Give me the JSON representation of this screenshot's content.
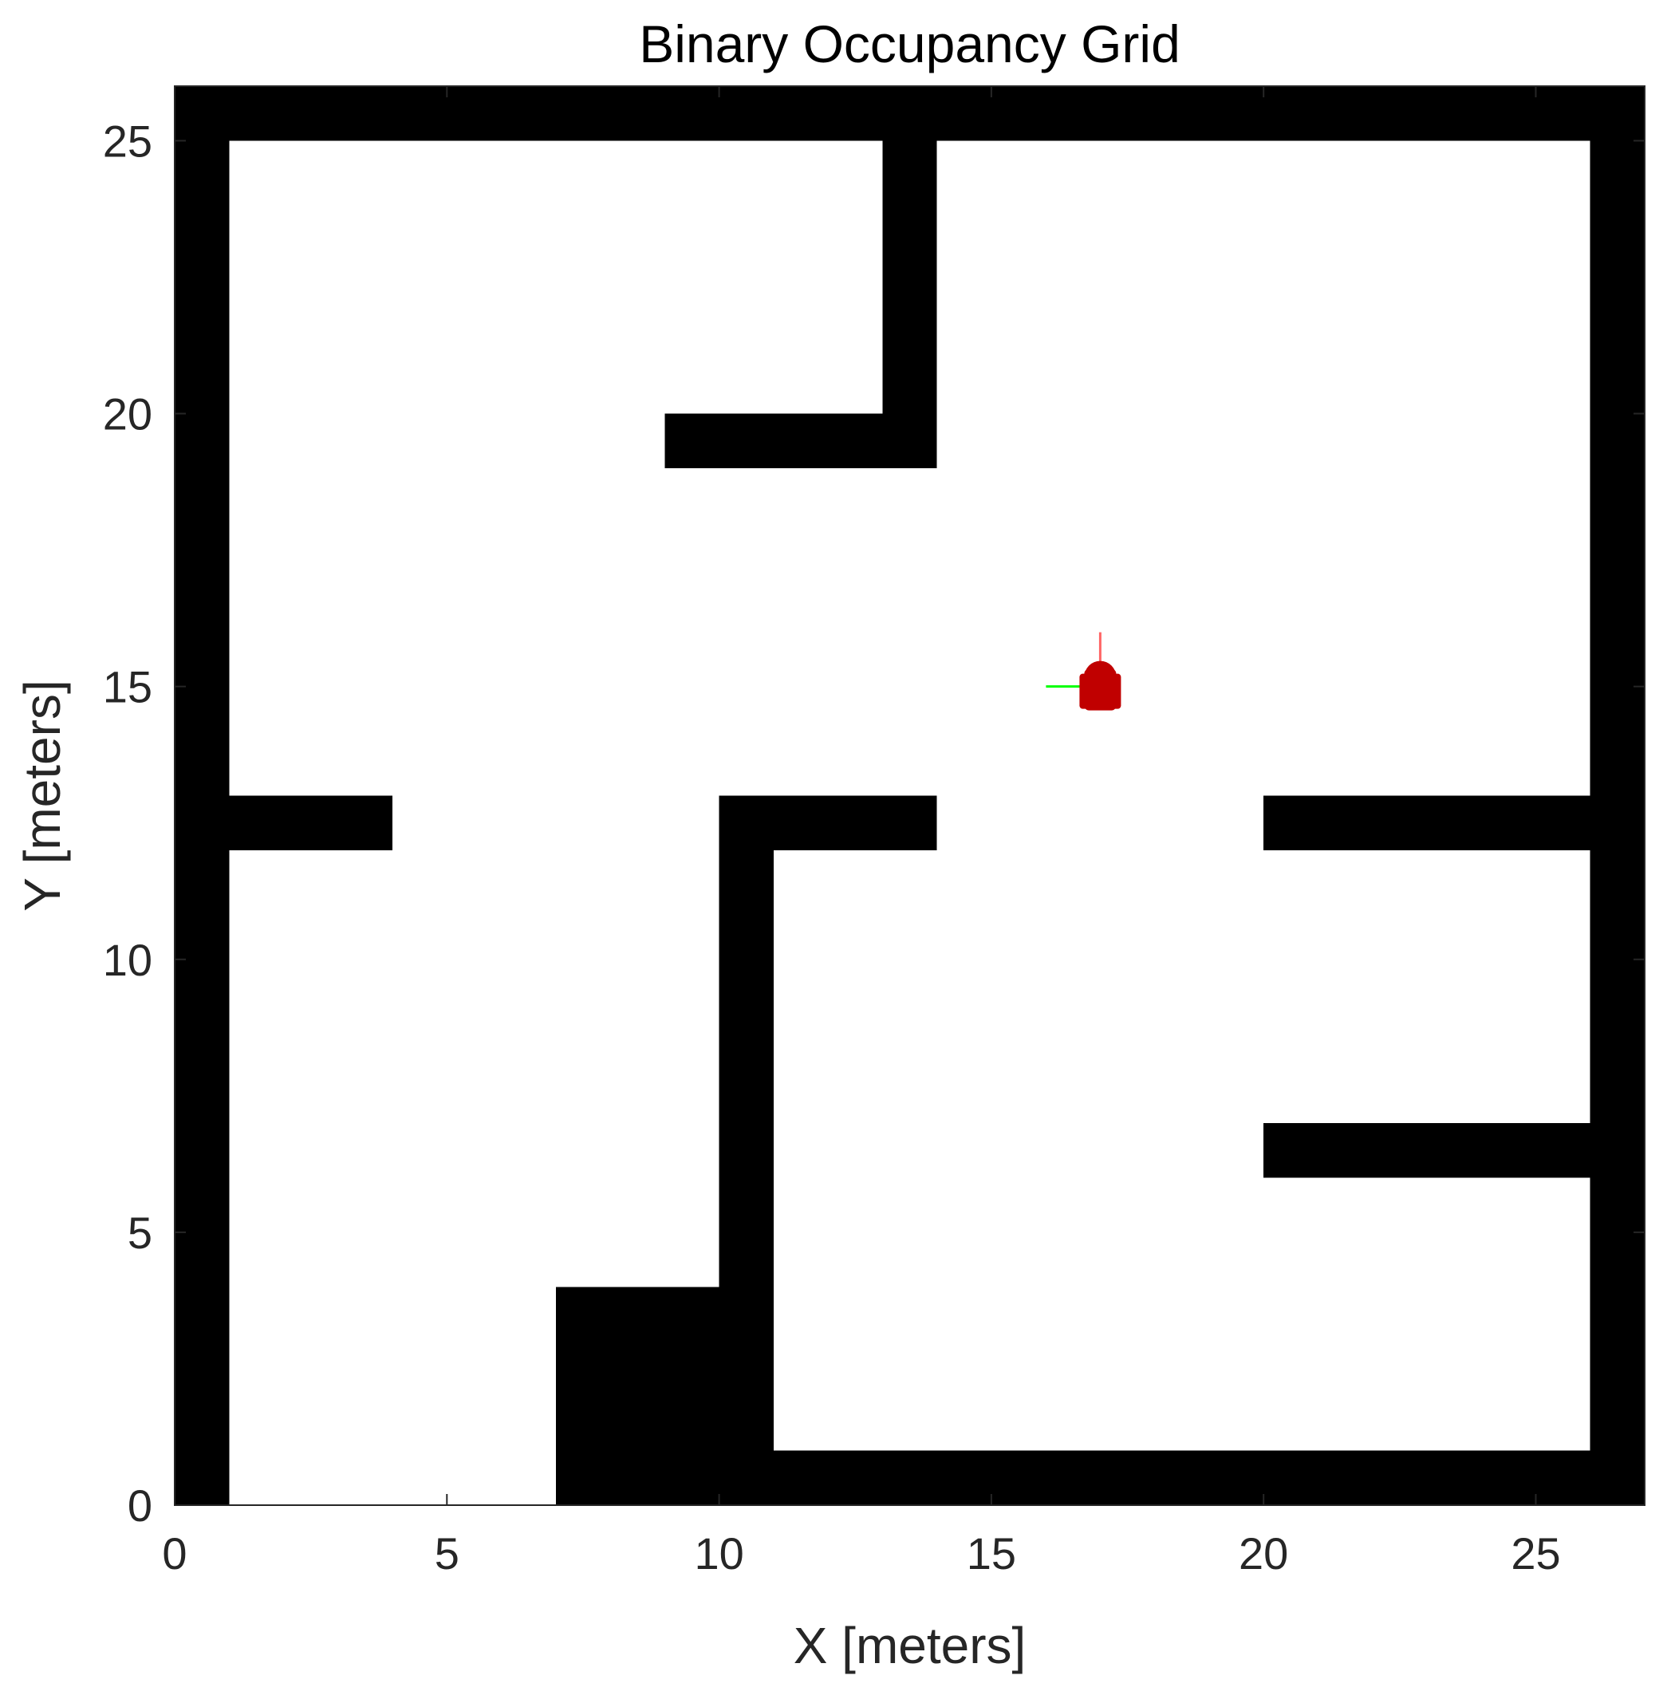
{
  "chart_data": {
    "type": "heatmap",
    "title": "Binary Occupancy Grid",
    "xlabel": "X [meters]",
    "ylabel": "Y [meters]",
    "xlim": [
      0,
      27
    ],
    "ylim": [
      0,
      26
    ],
    "x_ticks": [
      0,
      5,
      10,
      15,
      20,
      25
    ],
    "y_ticks": [
      0,
      5,
      10,
      15,
      20,
      25
    ],
    "x_tick_labels": [
      "0",
      "5",
      "10",
      "15",
      "20",
      "25"
    ],
    "y_tick_labels": [
      "0",
      "5",
      "10",
      "15",
      "20",
      "25"
    ],
    "grid": false,
    "colors": {
      "occupied": "#000000",
      "free": "#ffffff",
      "axes": "#262626",
      "robot_body": "#c00000",
      "robot_x_axis": "#ff6666",
      "robot_y_axis": "#00ff00"
    },
    "occupied_cells": [
      {
        "name": "top-wall",
        "x0": 0,
        "x1": 27,
        "y0": 25,
        "y1": 26
      },
      {
        "name": "left-wall",
        "x0": 0,
        "x1": 1,
        "y0": 0,
        "y1": 26
      },
      {
        "name": "right-wall",
        "x0": 26,
        "x1": 27,
        "y0": 0,
        "y1": 26
      },
      {
        "name": "bottom-wall",
        "x0": 10,
        "x1": 27,
        "y0": 0,
        "y1": 1
      },
      {
        "name": "upper-vertical-wall",
        "x0": 13,
        "x1": 14,
        "y0": 19,
        "y1": 25
      },
      {
        "name": "upper-horizontal-wall",
        "x0": 9,
        "x1": 14,
        "y0": 19,
        "y1": 20
      },
      {
        "name": "left-stub-wall",
        "x0": 1,
        "x1": 4,
        "y0": 12,
        "y1": 13
      },
      {
        "name": "middle-horizontal-wall",
        "x0": 10,
        "x1": 14,
        "y0": 12,
        "y1": 13
      },
      {
        "name": "middle-vertical-wall",
        "x0": 10,
        "x1": 11,
        "y0": 0,
        "y1": 13
      },
      {
        "name": "lower-block",
        "x0": 7,
        "x1": 10,
        "y0": 0,
        "y1": 4
      },
      {
        "name": "right-upper-wall",
        "x0": 20,
        "x1": 26,
        "y0": 12,
        "y1": 13
      },
      {
        "name": "right-lower-wall",
        "x0": 20,
        "x1": 26,
        "y0": 6,
        "y1": 7
      }
    ],
    "robot_pose": {
      "x": 17,
      "y": 15,
      "theta_deg": 90
    }
  }
}
